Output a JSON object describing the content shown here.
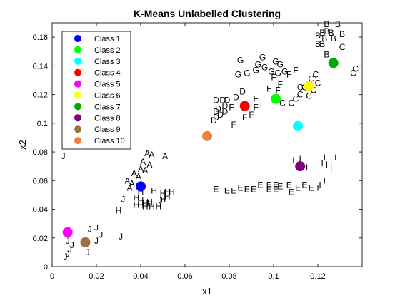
{
  "chart_data": {
    "type": "scatter",
    "title": "K-Means Unlabelled Clustering",
    "xlabel": "x1",
    "ylabel": "x2",
    "xlim": [
      0,
      0.14
    ],
    "ylim": [
      0,
      0.17
    ],
    "xticks": [
      "0",
      "0.02",
      "0.04",
      "0.06",
      "0.08",
      "0.1",
      "0.12"
    ],
    "xtick_values": [
      0,
      0.02,
      0.04,
      0.06,
      0.08,
      0.1,
      0.12
    ],
    "yticks": [
      "0",
      "0.02",
      "0.04",
      "0.06",
      "0.08",
      "0.1",
      "0.12",
      "0.14",
      "0.16"
    ],
    "ytick_values": [
      0,
      0.02,
      0.04,
      0.06,
      0.08,
      0.1,
      0.12,
      0.14,
      0.16
    ],
    "grid": false,
    "legend_position": "top-left",
    "centroids": [
      {
        "name": "Class 1",
        "color": "#0000ff",
        "x": 0.04,
        "y": 0.056
      },
      {
        "name": "Class 2",
        "color": "#00ff00",
        "x": 0.101,
        "y": 0.117
      },
      {
        "name": "Class 3",
        "color": "#00ffff",
        "x": 0.111,
        "y": 0.098
      },
      {
        "name": "Class 4",
        "color": "#ff0000",
        "x": 0.087,
        "y": 0.112
      },
      {
        "name": "Class 5",
        "color": "#ff00ff",
        "x": 0.007,
        "y": 0.024
      },
      {
        "name": "Class 6",
        "color": "#ffff00",
        "x": 0.116,
        "y": 0.126
      },
      {
        "name": "Class 7",
        "color": "#00aa00",
        "x": 0.127,
        "y": 0.142
      },
      {
        "name": "Class 8",
        "color": "#800080",
        "x": 0.112,
        "y": 0.07
      },
      {
        "name": "Class 9",
        "color": "#a0703c",
        "x": 0.015,
        "y": 0.017
      },
      {
        "name": "Class 10",
        "color": "#f08040",
        "x": 0.07,
        "y": 0.091
      }
    ],
    "points": [
      {
        "label": "A",
        "x": 0.043,
        "y": 0.079
      },
      {
        "label": "A",
        "x": 0.045,
        "y": 0.078
      },
      {
        "label": "A",
        "x": 0.051,
        "y": 0.077
      },
      {
        "label": "A",
        "x": 0.041,
        "y": 0.073
      },
      {
        "label": "A",
        "x": 0.044,
        "y": 0.071
      },
      {
        "label": "A",
        "x": 0.04,
        "y": 0.068
      },
      {
        "label": "A",
        "x": 0.042,
        "y": 0.067
      },
      {
        "label": "A",
        "x": 0.037,
        "y": 0.065
      },
      {
        "label": "A",
        "x": 0.039,
        "y": 0.063
      },
      {
        "label": "A",
        "x": 0.034,
        "y": 0.06
      },
      {
        "label": "A",
        "x": 0.036,
        "y": 0.058
      },
      {
        "label": "A",
        "x": 0.035,
        "y": 0.055
      },
      {
        "label": "H",
        "x": 0.04,
        "y": 0.052
      },
      {
        "label": "H",
        "x": 0.046,
        "y": 0.053
      },
      {
        "label": "H",
        "x": 0.05,
        "y": 0.051
      },
      {
        "label": "H",
        "x": 0.052,
        "y": 0.052
      },
      {
        "label": "H",
        "x": 0.054,
        "y": 0.052
      },
      {
        "label": "H",
        "x": 0.038,
        "y": 0.048
      },
      {
        "label": "H",
        "x": 0.04,
        "y": 0.046
      },
      {
        "label": "H",
        "x": 0.042,
        "y": 0.044
      },
      {
        "label": "H",
        "x": 0.044,
        "y": 0.045
      },
      {
        "label": "H",
        "x": 0.05,
        "y": 0.047
      },
      {
        "label": "H",
        "x": 0.052,
        "y": 0.049
      },
      {
        "label": "H",
        "x": 0.04,
        "y": 0.043
      },
      {
        "label": "H",
        "x": 0.042,
        "y": 0.042
      },
      {
        "label": "H",
        "x": 0.045,
        "y": 0.042
      },
      {
        "label": "H",
        "x": 0.048,
        "y": 0.042
      },
      {
        "label": "H",
        "x": 0.038,
        "y": 0.043
      },
      {
        "label": "H",
        "x": 0.03,
        "y": 0.039
      },
      {
        "label": "J",
        "x": 0.032,
        "y": 0.047
      },
      {
        "label": "J",
        "x": 0.049,
        "y": 0.046
      },
      {
        "label": "J",
        "x": 0.043,
        "y": 0.044
      },
      {
        "label": "J",
        "x": 0.005,
        "y": 0.077
      },
      {
        "label": "J",
        "x": 0.017,
        "y": 0.026
      },
      {
        "label": "J",
        "x": 0.02,
        "y": 0.027
      },
      {
        "label": "J",
        "x": 0.022,
        "y": 0.022
      },
      {
        "label": "J",
        "x": 0.031,
        "y": 0.021
      },
      {
        "label": "J",
        "x": 0.02,
        "y": 0.018
      },
      {
        "label": "J",
        "x": 0.007,
        "y": 0.018
      },
      {
        "label": "J",
        "x": 0.009,
        "y": 0.015
      },
      {
        "label": "J",
        "x": 0.008,
        "y": 0.012
      },
      {
        "label": "J",
        "x": 0.007,
        "y": 0.009
      },
      {
        "label": "J",
        "x": 0.006,
        "y": 0.007
      },
      {
        "label": "J",
        "x": 0.016,
        "y": 0.01
      },
      {
        "label": "B",
        "x": 0.124,
        "y": 0.169
      },
      {
        "label": "B",
        "x": 0.129,
        "y": 0.169
      },
      {
        "label": "B",
        "x": 0.122,
        "y": 0.163
      },
      {
        "label": "B",
        "x": 0.124,
        "y": 0.164
      },
      {
        "label": "B",
        "x": 0.126,
        "y": 0.163
      },
      {
        "label": "B",
        "x": 0.131,
        "y": 0.162
      },
      {
        "label": "B",
        "x": 0.12,
        "y": 0.161
      },
      {
        "label": "B",
        "x": 0.123,
        "y": 0.159
      },
      {
        "label": "B",
        "x": 0.127,
        "y": 0.159
      },
      {
        "label": "B",
        "x": 0.12,
        "y": 0.155
      },
      {
        "label": "B",
        "x": 0.122,
        "y": 0.155
      },
      {
        "label": "B",
        "x": 0.124,
        "y": 0.148
      },
      {
        "label": "C",
        "x": 0.131,
        "y": 0.153
      },
      {
        "label": "C",
        "x": 0.137,
        "y": 0.138
      },
      {
        "label": "C",
        "x": 0.136,
        "y": 0.135
      },
      {
        "label": "C",
        "x": 0.119,
        "y": 0.134
      },
      {
        "label": "C",
        "x": 0.117,
        "y": 0.131
      },
      {
        "label": "C",
        "x": 0.12,
        "y": 0.128
      },
      {
        "label": "C",
        "x": 0.114,
        "y": 0.125
      },
      {
        "label": "C",
        "x": 0.118,
        "y": 0.123
      },
      {
        "label": "C",
        "x": 0.112,
        "y": 0.125
      },
      {
        "label": "C",
        "x": 0.112,
        "y": 0.12
      },
      {
        "label": "C",
        "x": 0.116,
        "y": 0.119
      },
      {
        "label": "C",
        "x": 0.104,
        "y": 0.114
      },
      {
        "label": "C",
        "x": 0.108,
        "y": 0.114
      },
      {
        "label": "C",
        "x": 0.11,
        "y": 0.117
      },
      {
        "label": "G",
        "x": 0.085,
        "y": 0.144
      },
      {
        "label": "G",
        "x": 0.095,
        "y": 0.146
      },
      {
        "label": "G",
        "x": 0.101,
        "y": 0.143
      },
      {
        "label": "G",
        "x": 0.103,
        "y": 0.141
      },
      {
        "label": "G",
        "x": 0.093,
        "y": 0.141
      },
      {
        "label": "G",
        "x": 0.096,
        "y": 0.139
      },
      {
        "label": "G",
        "x": 0.092,
        "y": 0.137
      },
      {
        "label": "G",
        "x": 0.088,
        "y": 0.135
      },
      {
        "label": "G",
        "x": 0.084,
        "y": 0.134
      },
      {
        "label": "G",
        "x": 0.099,
        "y": 0.136
      },
      {
        "label": "G",
        "x": 0.102,
        "y": 0.135
      },
      {
        "label": "G",
        "x": 0.105,
        "y": 0.136
      },
      {
        "label": "F",
        "x": 0.11,
        "y": 0.137
      },
      {
        "label": "F",
        "x": 0.107,
        "y": 0.134
      },
      {
        "label": "F",
        "x": 0.1,
        "y": 0.132
      },
      {
        "label": "F",
        "x": 0.103,
        "y": 0.127
      },
      {
        "label": "F",
        "x": 0.098,
        "y": 0.124
      },
      {
        "label": "F",
        "x": 0.102,
        "y": 0.123
      },
      {
        "label": "F",
        "x": 0.092,
        "y": 0.117
      },
      {
        "label": "F",
        "x": 0.095,
        "y": 0.112
      },
      {
        "label": "F",
        "x": 0.092,
        "y": 0.111
      },
      {
        "label": "F",
        "x": 0.087,
        "y": 0.104
      },
      {
        "label": "F",
        "x": 0.09,
        "y": 0.106
      },
      {
        "label": "F",
        "x": 0.082,
        "y": 0.099
      },
      {
        "label": "F",
        "x": 0.081,
        "y": 0.111
      },
      {
        "label": "D",
        "x": 0.086,
        "y": 0.122
      },
      {
        "label": "D",
        "x": 0.083,
        "y": 0.118
      },
      {
        "label": "D",
        "x": 0.079,
        "y": 0.116
      },
      {
        "label": "D",
        "x": 0.077,
        "y": 0.116
      },
      {
        "label": "D",
        "x": 0.074,
        "y": 0.116
      },
      {
        "label": "D",
        "x": 0.078,
        "y": 0.112
      },
      {
        "label": "D",
        "x": 0.075,
        "y": 0.11
      },
      {
        "label": "D",
        "x": 0.078,
        "y": 0.108
      },
      {
        "label": "D",
        "x": 0.074,
        "y": 0.108
      },
      {
        "label": "D",
        "x": 0.074,
        "y": 0.104
      },
      {
        "label": "D",
        "x": 0.073,
        "y": 0.102
      },
      {
        "label": "D",
        "x": 0.076,
        "y": 0.106
      },
      {
        "label": "I",
        "x": 0.109,
        "y": 0.074
      },
      {
        "label": "I",
        "x": 0.112,
        "y": 0.075
      },
      {
        "label": "I",
        "x": 0.123,
        "y": 0.076
      },
      {
        "label": "I",
        "x": 0.128,
        "y": 0.076
      },
      {
        "label": "I",
        "x": 0.122,
        "y": 0.072
      },
      {
        "label": "I",
        "x": 0.124,
        "y": 0.071
      },
      {
        "label": "I",
        "x": 0.126,
        "y": 0.071
      },
      {
        "label": "I",
        "x": 0.115,
        "y": 0.069
      },
      {
        "label": "I",
        "x": 0.126,
        "y": 0.067
      },
      {
        "label": "I",
        "x": 0.123,
        "y": 0.06
      },
      {
        "label": "E",
        "x": 0.085,
        "y": 0.055
      },
      {
        "label": "E",
        "x": 0.088,
        "y": 0.054
      },
      {
        "label": "E",
        "x": 0.091,
        "y": 0.054
      },
      {
        "label": "E",
        "x": 0.094,
        "y": 0.057
      },
      {
        "label": "E",
        "x": 0.098,
        "y": 0.057
      },
      {
        "label": "E",
        "x": 0.098,
        "y": 0.054
      },
      {
        "label": "E",
        "x": 0.101,
        "y": 0.057
      },
      {
        "label": "E",
        "x": 0.101,
        "y": 0.054
      },
      {
        "label": "E",
        "x": 0.103,
        "y": 0.056
      },
      {
        "label": "E",
        "x": 0.107,
        "y": 0.057
      },
      {
        "label": "E",
        "x": 0.108,
        "y": 0.052
      },
      {
        "label": "E",
        "x": 0.114,
        "y": 0.057
      },
      {
        "label": "E",
        "x": 0.117,
        "y": 0.055
      },
      {
        "label": "E",
        "x": 0.111,
        "y": 0.055
      },
      {
        "label": "E",
        "x": 0.074,
        "y": 0.054
      },
      {
        "label": "E",
        "x": 0.079,
        "y": 0.053
      },
      {
        "label": "E",
        "x": 0.082,
        "y": 0.053
      },
      {
        "label": "I",
        "x": 0.121,
        "y": 0.057
      },
      {
        "label": "I",
        "x": 0.12,
        "y": 0.055
      }
    ]
  }
}
